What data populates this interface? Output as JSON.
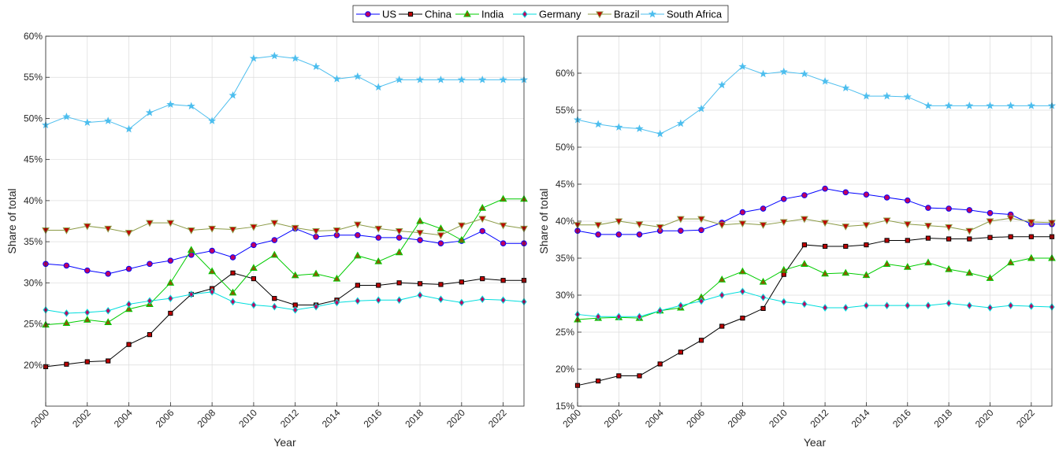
{
  "legend_order": [
    "US",
    "China",
    "India",
    "Germany",
    "Brazil",
    "South Africa"
  ],
  "chart_data": [
    {
      "type": "line",
      "title": "",
      "xlabel": "Year",
      "ylabel": "Share of total",
      "xlim": [
        2000,
        2023
      ],
      "ylim": [
        15,
        60
      ],
      "yticks": [
        20,
        25,
        30,
        35,
        40,
        45,
        50,
        55,
        60
      ],
      "ytick_labels": [
        "20%",
        "25%",
        "30%",
        "35%",
        "40%",
        "45%",
        "50%",
        "55%",
        "60%"
      ],
      "xticks": [
        2000,
        2002,
        2004,
        2006,
        2008,
        2010,
        2012,
        2014,
        2016,
        2018,
        2020,
        2022
      ],
      "xtick_labels": [
        "2000",
        "2002",
        "2004",
        "2006",
        "2008",
        "2010",
        "2012",
        "2014",
        "2016",
        "2018",
        "2020",
        "2022"
      ],
      "x": [
        2000,
        2001,
        2002,
        2003,
        2004,
        2005,
        2006,
        2007,
        2008,
        2009,
        2010,
        2011,
        2012,
        2013,
        2014,
        2015,
        2016,
        2017,
        2018,
        2019,
        2020,
        2021,
        2022,
        2023
      ],
      "series": [
        {
          "name": "US",
          "color": "#0000FF",
          "marker": "circle",
          "fill": "#C00060",
          "values": [
            32.3,
            32.1,
            31.5,
            31.1,
            31.7,
            32.3,
            32.7,
            33.4,
            33.9,
            33.1,
            34.6,
            35.2,
            36.6,
            35.6,
            35.8,
            35.8,
            35.5,
            35.5,
            35.2,
            34.8,
            35.1,
            36.3,
            34.8,
            34.8
          ]
        },
        {
          "name": "China",
          "color": "#000000",
          "marker": "square",
          "fill": "#C00000",
          "values": [
            19.8,
            20.1,
            20.4,
            20.5,
            22.5,
            23.7,
            26.3,
            28.6,
            29.3,
            31.2,
            30.5,
            28.1,
            27.3,
            27.3,
            27.9,
            29.7,
            29.7,
            30.0,
            29.9,
            29.8,
            30.1,
            30.5,
            30.3,
            30.3
          ]
        },
        {
          "name": "India",
          "color": "#00CC00",
          "marker": "triangle-up",
          "fill": "#8B5A00",
          "values": [
            24.9,
            25.1,
            25.5,
            25.2,
            26.8,
            27.4,
            30.0,
            34.0,
            31.4,
            28.8,
            31.8,
            33.4,
            30.9,
            31.1,
            30.5,
            33.3,
            32.6,
            33.7,
            37.5,
            36.6,
            35.2,
            39.1,
            40.2,
            40.2
          ]
        },
        {
          "name": "Germany",
          "color": "#00DDDD",
          "marker": "diamond",
          "fill": "#C00060",
          "values": [
            26.7,
            26.3,
            26.4,
            26.6,
            27.4,
            27.8,
            28.1,
            28.6,
            28.9,
            27.7,
            27.3,
            27.1,
            26.7,
            27.1,
            27.6,
            27.8,
            27.9,
            27.9,
            28.5,
            28.0,
            27.6,
            28.0,
            27.9,
            27.7
          ]
        },
        {
          "name": "Brazil",
          "color": "#8B9A46",
          "marker": "triangle-down",
          "fill": "#C00000",
          "values": [
            36.4,
            36.4,
            36.9,
            36.6,
            36.1,
            37.3,
            37.3,
            36.4,
            36.6,
            36.5,
            36.8,
            37.3,
            36.7,
            36.3,
            36.4,
            37.1,
            36.6,
            36.3,
            36.1,
            35.8,
            37.0,
            37.8,
            37.0,
            36.6
          ]
        },
        {
          "name": "South Africa",
          "color": "#4DBEEE",
          "marker": "star",
          "fill": "#4DBEEE",
          "values": [
            49.2,
            50.2,
            49.5,
            49.7,
            48.7,
            50.7,
            51.7,
            51.5,
            49.7,
            52.8,
            57.3,
            57.6,
            57.3,
            56.3,
            54.8,
            55.1,
            53.8,
            54.7,
            54.7,
            54.7,
            54.7,
            54.7,
            54.7,
            54.7
          ]
        }
      ]
    },
    {
      "type": "line",
      "title": "",
      "xlabel": "Year",
      "ylabel": "Share of total",
      "xlim": [
        2000,
        2023
      ],
      "ylim": [
        15,
        65
      ],
      "yticks": [
        15,
        20,
        25,
        30,
        35,
        40,
        45,
        50,
        55,
        60
      ],
      "ytick_labels": [
        "15%",
        "20%",
        "25%",
        "30%",
        "35%",
        "40%",
        "45%",
        "50%",
        "55%",
        "60%"
      ],
      "xticks": [
        2000,
        2002,
        2004,
        2006,
        2008,
        2010,
        2012,
        2014,
        2016,
        2018,
        2020,
        2022
      ],
      "xtick_labels": [
        "2000",
        "2002",
        "2004",
        "2006",
        "2008",
        "2010",
        "2012",
        "2014",
        "2016",
        "2018",
        "2020",
        "2022"
      ],
      "x": [
        2000,
        2001,
        2002,
        2003,
        2004,
        2005,
        2006,
        2007,
        2008,
        2009,
        2010,
        2011,
        2012,
        2013,
        2014,
        2015,
        2016,
        2017,
        2018,
        2019,
        2020,
        2021,
        2022,
        2023
      ],
      "series": [
        {
          "name": "US",
          "color": "#0000FF",
          "marker": "circle",
          "fill": "#C00060",
          "values": [
            38.7,
            38.2,
            38.2,
            38.2,
            38.7,
            38.7,
            38.8,
            39.8,
            41.2,
            41.7,
            43.0,
            43.5,
            44.4,
            43.9,
            43.6,
            43.2,
            42.8,
            41.8,
            41.7,
            41.5,
            41.1,
            40.9,
            39.6,
            39.6
          ]
        },
        {
          "name": "China",
          "color": "#000000",
          "marker": "square",
          "fill": "#C00000",
          "values": [
            17.8,
            18.4,
            19.1,
            19.1,
            20.7,
            22.3,
            23.9,
            25.8,
            26.9,
            28.2,
            32.8,
            36.8,
            36.6,
            36.6,
            36.8,
            37.4,
            37.4,
            37.7,
            37.6,
            37.6,
            37.8,
            37.9,
            37.9,
            37.9
          ]
        },
        {
          "name": "India",
          "color": "#00CC00",
          "marker": "triangle-up",
          "fill": "#8B5A00",
          "values": [
            26.7,
            26.9,
            27.0,
            26.9,
            27.9,
            28.3,
            29.7,
            32.1,
            33.2,
            31.8,
            33.4,
            34.2,
            32.9,
            33.0,
            32.7,
            34.2,
            33.8,
            34.4,
            33.5,
            33.0,
            32.3,
            34.4,
            35.0,
            35.0
          ]
        },
        {
          "name": "Germany",
          "color": "#00DDDD",
          "marker": "diamond",
          "fill": "#C00060",
          "values": [
            27.4,
            27.1,
            27.1,
            27.1,
            27.9,
            28.6,
            29.2,
            30.0,
            30.5,
            29.7,
            29.1,
            28.8,
            28.3,
            28.3,
            28.6,
            28.6,
            28.6,
            28.6,
            28.9,
            28.6,
            28.3,
            28.6,
            28.5,
            28.4
          ]
        },
        {
          "name": "Brazil",
          "color": "#8B9A46",
          "marker": "triangle-down",
          "fill": "#C00000",
          "values": [
            39.5,
            39.5,
            40.0,
            39.6,
            39.2,
            40.3,
            40.3,
            39.5,
            39.7,
            39.5,
            39.9,
            40.3,
            39.8,
            39.3,
            39.5,
            40.1,
            39.6,
            39.4,
            39.2,
            38.7,
            40.0,
            40.4,
            39.9,
            39.8
          ]
        },
        {
          "name": "South Africa",
          "color": "#4DBEEE",
          "marker": "star",
          "fill": "#4DBEEE",
          "values": [
            53.7,
            53.1,
            52.7,
            52.5,
            51.8,
            53.2,
            55.2,
            58.4,
            60.9,
            59.9,
            60.2,
            59.9,
            58.9,
            58.0,
            56.9,
            56.9,
            56.8,
            55.6,
            55.6,
            55.6,
            55.6,
            55.6,
            55.6,
            55.6
          ]
        }
      ]
    }
  ]
}
